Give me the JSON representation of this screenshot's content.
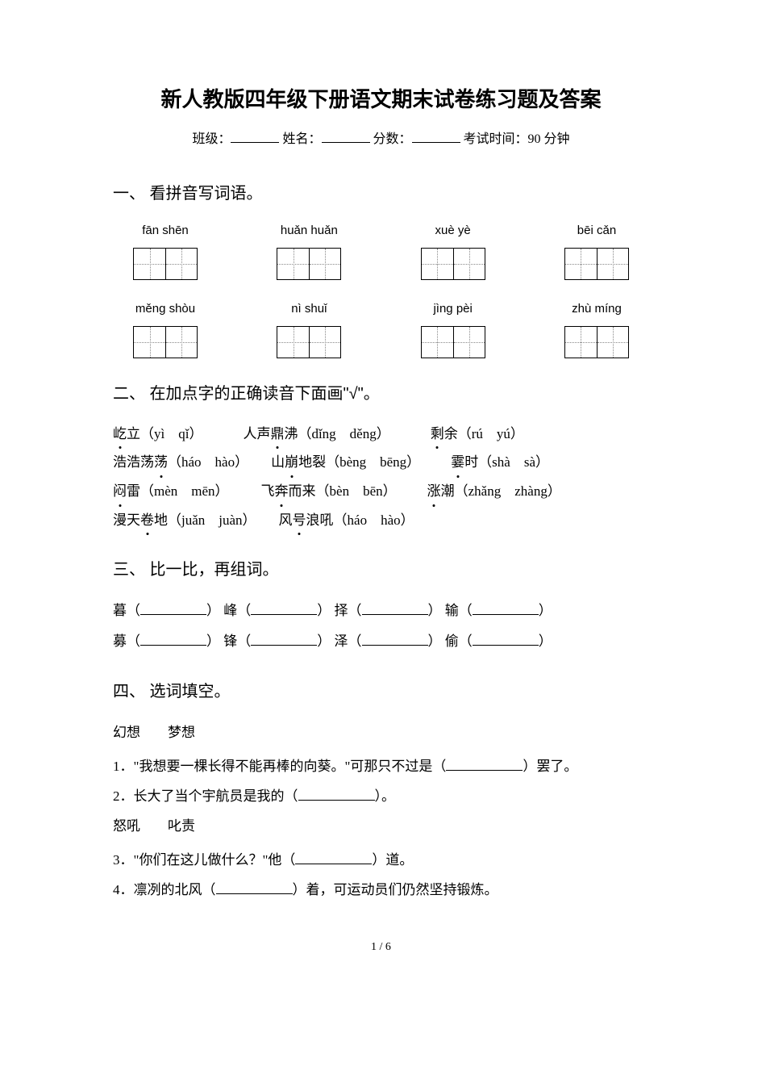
{
  "title": "新人教版四年级下册语文期末试卷练习题及答案",
  "header": {
    "class_label": "班级：",
    "name_label": "姓名：",
    "score_label": "分数：",
    "time_label": "考试时间：90 分钟"
  },
  "section1": {
    "title": "一、 看拼音写词语。",
    "pinyin_row1": [
      "fān shēn",
      "huǎn huǎn",
      "xuè yè",
      "bēi cǎn"
    ],
    "pinyin_row2": [
      "měng shòu",
      "nì shuǐ",
      "jìng pèi",
      "zhù míng"
    ]
  },
  "section2": {
    "title": "二、 在加点字的正确读音下面画\"√\"。",
    "items": [
      {
        "char": "屹",
        "rest": "立（yì　qǐ）"
      },
      {
        "char": "鼎",
        "pre": "人声",
        "rest": "沸（dǐng　děng）"
      },
      {
        "char": "剩",
        "rest": "余（rú　yú）"
      },
      {
        "char": "荡",
        "pre": "浩浩荡",
        "rest": "（háo　hào）"
      },
      {
        "char": "崩",
        "pre": "山",
        "rest": "地裂（bèng　bēng）"
      },
      {
        "char": "霎",
        "rest": "时（shà　sà）"
      },
      {
        "char": "闷",
        "rest": "雷（mèn　mēn）"
      },
      {
        "char": "奔",
        "pre": "飞",
        "rest": "而来（bèn　bēn）"
      },
      {
        "char": "涨",
        "rest": "潮（zhǎng　zhàng）"
      },
      {
        "char": "卷",
        "pre": "漫天",
        "rest": "地（juǎn　juàn）"
      },
      {
        "char": "号",
        "pre": "风",
        "rest": "浪吼（háo　hào）"
      }
    ]
  },
  "section3": {
    "title": "三、 比一比，再组词。",
    "row1": [
      "暮",
      "峰",
      "择",
      "输"
    ],
    "row2": [
      "募",
      "锋",
      "泽",
      "偷"
    ]
  },
  "section4": {
    "title": "四、 选词填空。",
    "pair1": "幻想　　梦想",
    "q1_a": "1．\"我想要一棵长得不能再棒的向葵。\"可那只不过是（",
    "q1_b": "）罢了。",
    "q2_a": "2．长大了当个宇航员是我的（",
    "q2_b": "）。",
    "pair2": "怒吼　　叱责",
    "q3_a": "3．\"你们在这儿做什么？\"他（",
    "q3_b": "）道。",
    "q4_a": "4．凛冽的北风（",
    "q4_b": "）着，可运动员们仍然坚持锻炼。"
  },
  "page_num": "1 / 6",
  "colors": {
    "text": "#000000",
    "bg": "#ffffff",
    "dotted": "#888888"
  }
}
